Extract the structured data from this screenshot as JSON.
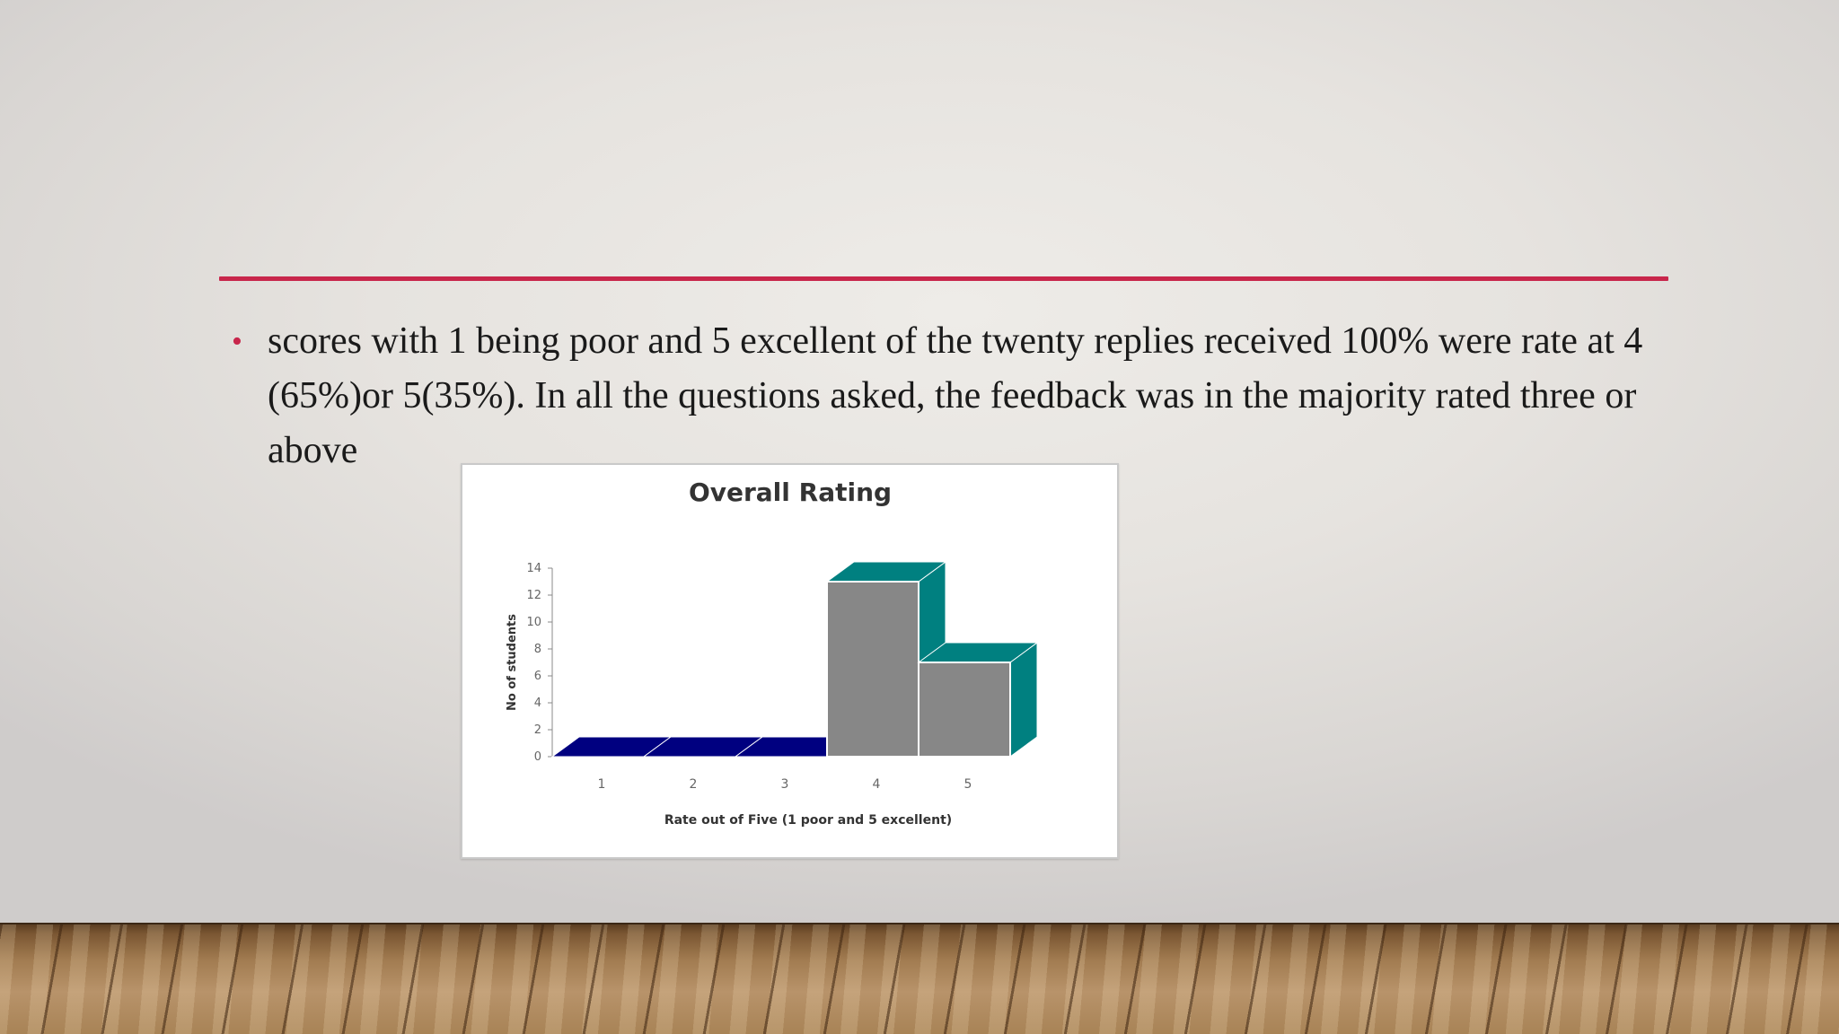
{
  "slide": {
    "bullet_text": "scores with 1 being poor and 5 excellent of the twenty replies received 100% were rate at 4 (65%)or 5(35%). In all the questions asked, the feedback was in the majority rated three or above",
    "accent_color": "#c8264b"
  },
  "chart_data": {
    "type": "bar",
    "title": "Overall Rating",
    "xlabel": "Rate out of Five (1 poor and 5 excellent)",
    "ylabel": "No of students",
    "categories": [
      "1",
      "2",
      "3",
      "4",
      "5"
    ],
    "values": [
      0,
      0,
      0,
      13,
      7
    ],
    "ylim": [
      0,
      14
    ],
    "yticks": [
      0,
      2,
      4,
      6,
      8,
      10,
      12,
      14
    ],
    "style": "3d-column",
    "colors": {
      "bar_front": "#878787",
      "bar_top_side": "#008080",
      "zero_plate": "#000080"
    },
    "grid": false,
    "legend": "none"
  }
}
